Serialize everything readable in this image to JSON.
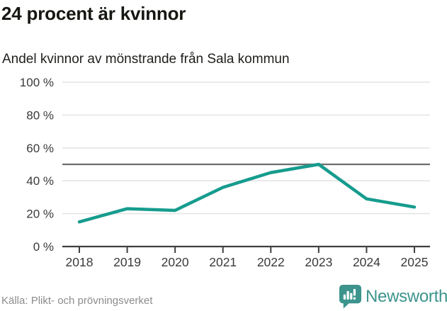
{
  "header": {
    "title": "24 procent är kvinnor",
    "subtitle": "Andel kvinnor av mönstrande från Sala kommun"
  },
  "chart_data": {
    "type": "line",
    "x": [
      "2018",
      "2019",
      "2020",
      "2021",
      "2022",
      "2023",
      "2024",
      "2025"
    ],
    "values": [
      15,
      23,
      22,
      36,
      45,
      50,
      29,
      24
    ],
    "series_name": "Andel kvinnor av mönstrande",
    "title": "24 procent är kvinnor",
    "subtitle": "Andel kvinnor av mönstrande från Sala kommun",
    "xlabel": "",
    "ylabel": "",
    "ylim": [
      0,
      100
    ],
    "y_ticks": [
      0,
      20,
      40,
      60,
      80,
      100
    ],
    "y_tick_labels": [
      "0 %",
      "20 %",
      "40 %",
      "60 %",
      "80 %",
      "100 %"
    ],
    "reference_line": 50,
    "grid": "horizontal",
    "legend": "none",
    "colors": {
      "line": "#169c8e",
      "grid": "#e4e4e4",
      "reference": "#6e6e6e",
      "axis": "#3f3f3f",
      "tick_text": "#3a3a3a"
    }
  },
  "footer": {
    "source": "Källa: Plikt- och prövningsverket",
    "brand": "Newsworthy",
    "brand_color": "#3d948d"
  }
}
